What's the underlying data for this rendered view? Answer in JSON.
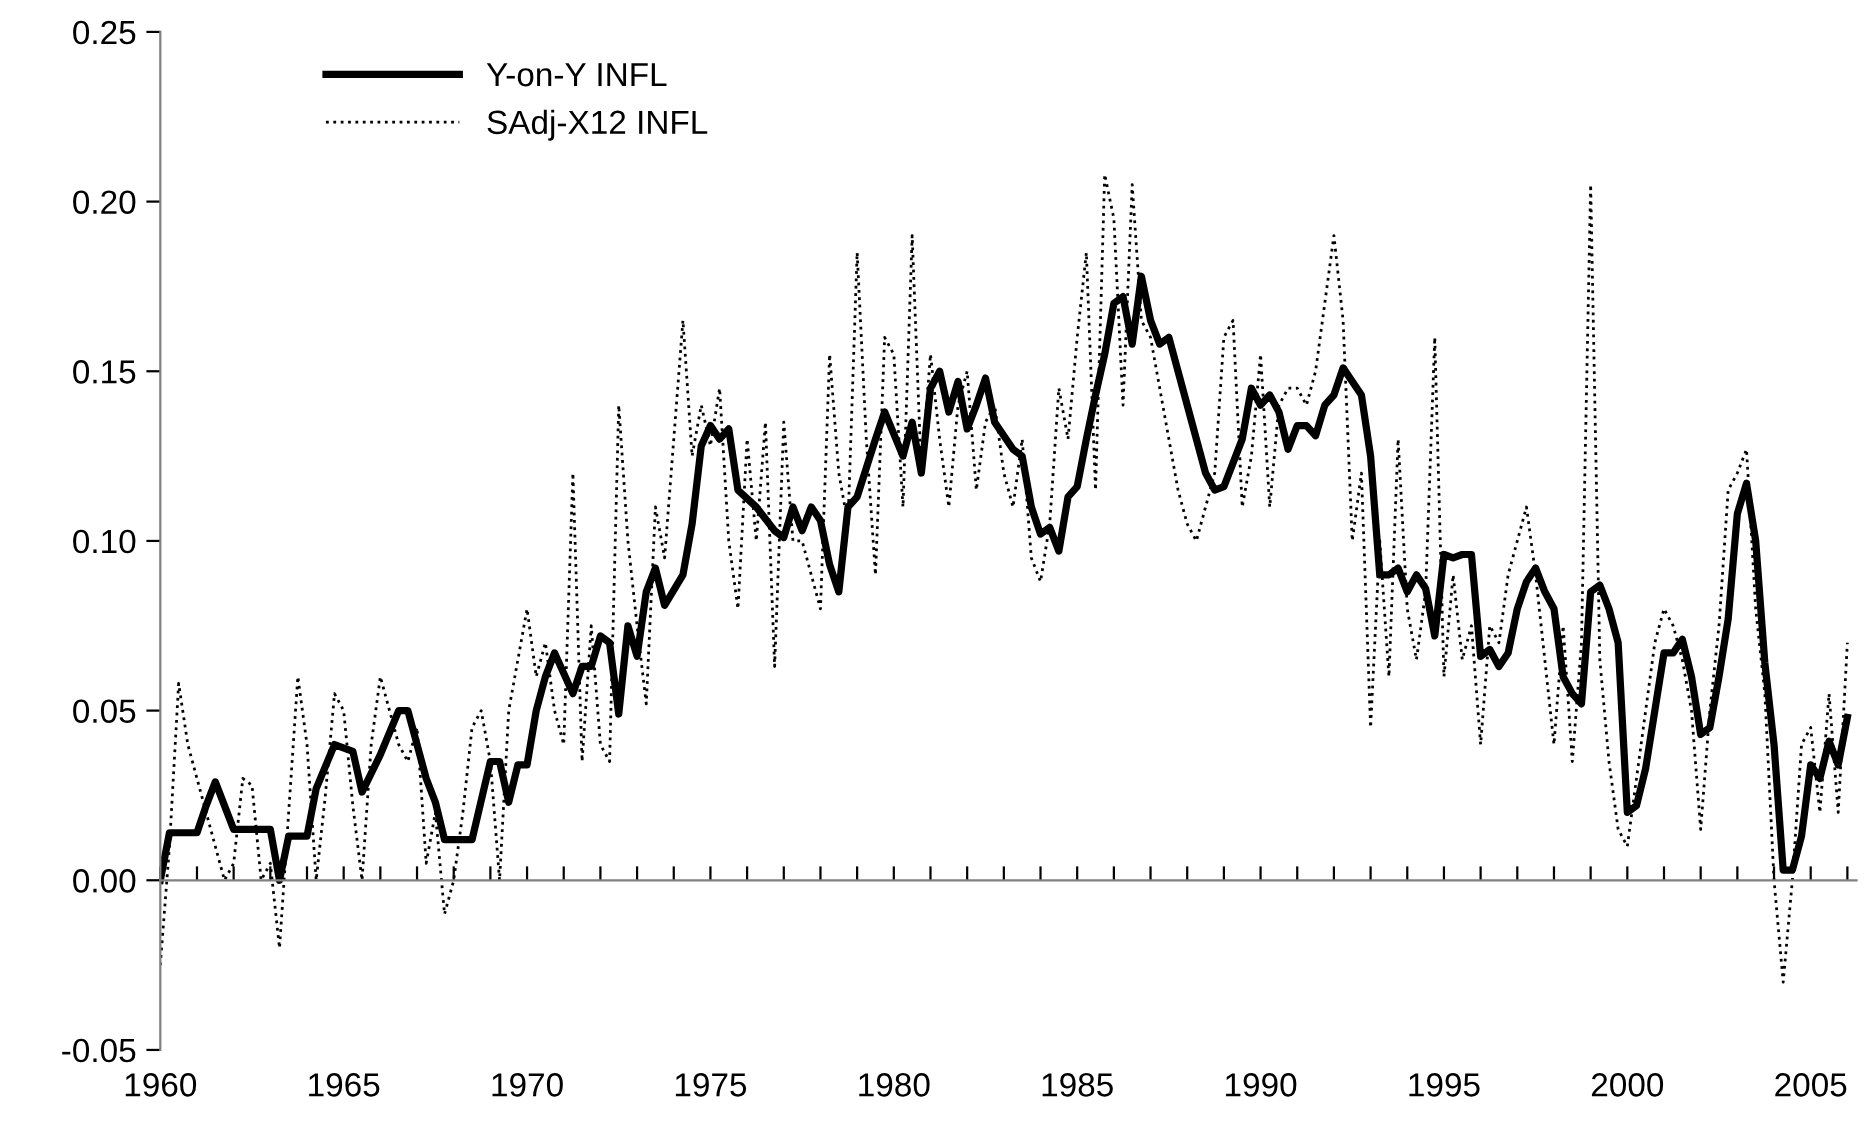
{
  "chart_data": {
    "type": "line",
    "legend": "top left",
    "xlim": [
      1960,
      2006.25
    ],
    "xticks": [
      1960,
      {
        "value": 1961,
        "label": null
      },
      {
        "value": 1962,
        "label": null
      },
      {
        "value": 1963,
        "label": null
      },
      {
        "value": 1964,
        "label": null
      },
      1965,
      {
        "value": 1966,
        "label": null
      },
      {
        "value": 1967,
        "label": null
      },
      {
        "value": 1968,
        "label": null
      },
      {
        "value": 1969,
        "label": null
      },
      1970,
      {
        "value": 1971,
        "label": null
      },
      {
        "value": 1972,
        "label": null
      },
      {
        "value": 1973,
        "label": null
      },
      {
        "value": 1974,
        "label": null
      },
      1975,
      {
        "value": 1976,
        "label": null
      },
      {
        "value": 1977,
        "label": null
      },
      {
        "value": 1978,
        "label": null
      },
      {
        "value": 1979,
        "label": null
      },
      1980,
      {
        "value": 1981,
        "label": null
      },
      {
        "value": 1982,
        "label": null
      },
      {
        "value": 1983,
        "label": null
      },
      {
        "value": 1984,
        "label": null
      },
      1985,
      {
        "value": 1986,
        "label": null
      },
      {
        "value": 1987,
        "label": null
      },
      {
        "value": 1988,
        "label": null
      },
      {
        "value": 1989,
        "label": null
      },
      1990,
      {
        "value": 1991,
        "label": null
      },
      {
        "value": 1992,
        "label": null
      },
      {
        "value": 1993,
        "label": null
      },
      {
        "value": 1994,
        "label": null
      },
      1995,
      {
        "value": 1996,
        "label": null
      },
      {
        "value": 1997,
        "label": null
      },
      {
        "value": 1998,
        "label": null
      },
      {
        "value": 1999,
        "label": null
      },
      2000,
      {
        "value": 2001,
        "label": null
      },
      {
        "value": 2002,
        "label": null
      },
      {
        "value": 2003,
        "label": null
      },
      {
        "value": 2004,
        "label": null
      },
      2005,
      {
        "value": 2006,
        "label": null
      }
    ],
    "ylim": [
      -0.05,
      0.25
    ],
    "yticks": [
      {
        "value": -0.05,
        "label": "-0.05"
      },
      {
        "value": 0,
        "label": "0.00"
      },
      {
        "value": 0.05,
        "label": "0.05"
      },
      {
        "value": 0.1,
        "label": "0.10"
      },
      {
        "value": 0.15,
        "label": "0.15"
      },
      {
        "value": 0.2,
        "label": "0.20"
      },
      {
        "value": 0.25,
        "label": "0.25"
      }
    ],
    "series": [
      {
        "name": "Y-on-Y INFL",
        "color": "#000000",
        "line_style": "solid",
        "x": [
          1960,
          1960.25,
          1961,
          1961.25,
          1961.5,
          1962,
          1963,
          1963.25,
          1963.5,
          1964,
          1964.25,
          1964.75,
          1965.25,
          1965.5,
          1966,
          1966.5,
          1966.75,
          1967.25,
          1967.5,
          1967.75,
          1968.5,
          1969,
          1969.25,
          1969.5,
          1969.75,
          1970,
          1970.25,
          1970.5,
          1970.75,
          1971.25,
          1971.5,
          1971.75,
          1972,
          1972.25,
          1972.5,
          1972.75,
          1973,
          1973.25,
          1973.5,
          1973.75,
          1974.25,
          1974.5,
          1974.75,
          1975,
          1975.25,
          1975.5,
          1975.75,
          1976.25,
          1976.75,
          1977,
          1977.25,
          1977.5,
          1977.75,
          1978,
          1978.25,
          1978.5,
          1978.75,
          1979,
          1979.5,
          1979.75,
          1980.25,
          1980.5,
          1980.75,
          1981,
          1981.25,
          1981.5,
          1981.75,
          1982,
          1982.25,
          1982.5,
          1982.75,
          1983.25,
          1983.5,
          1983.75,
          1984,
          1984.25,
          1984.5,
          1984.75,
          1985,
          1985.25,
          1985.5,
          1985.75,
          1986,
          1986.25,
          1986.5,
          1986.75,
          1987,
          1987.25,
          1987.5,
          1988,
          1988.5,
          1988.75,
          1989,
          1989.5,
          1989.75,
          1990,
          1990.25,
          1990.5,
          1990.75,
          1991,
          1991.25,
          1991.5,
          1991.75,
          1992,
          1992.25,
          1992.75,
          1993,
          1993.25,
          1993.5,
          1993.75,
          1994,
          1994.25,
          1994.5,
          1994.75,
          1995,
          1995.25,
          1995.5,
          1995.75,
          1996,
          1996.25,
          1996.5,
          1996.75,
          1997,
          1997.25,
          1997.5,
          1997.75,
          1998,
          1998.25,
          1998.5,
          1998.75,
          1999,
          1999.25,
          1999.5,
          1999.75,
          2000,
          2000.25,
          2000.5,
          2000.75,
          2001,
          2001.25,
          2001.5,
          2001.75,
          2002,
          2002.25,
          2002.5,
          2002.75,
          2003,
          2003.25,
          2003.5,
          2003.75,
          2004,
          2004.25,
          2004.5,
          2004.75,
          2005,
          2005.25,
          2005.5,
          2005.75,
          2006
        ],
        "values": [
          0.0,
          0.014,
          0.014,
          0.022,
          0.029,
          0.015,
          0.015,
          0.0,
          0.013,
          0.013,
          0.027,
          0.04,
          0.038,
          0.026,
          0.037,
          0.05,
          0.05,
          0.03,
          0.023,
          0.012,
          0.012,
          0.035,
          0.035,
          0.023,
          0.034,
          0.034,
          0.05,
          0.06,
          0.067,
          0.055,
          0.063,
          0.063,
          0.072,
          0.07,
          0.049,
          0.075,
          0.066,
          0.085,
          0.092,
          0.081,
          0.09,
          0.105,
          0.128,
          0.134,
          0.13,
          0.133,
          0.115,
          0.11,
          0.103,
          0.101,
          0.11,
          0.103,
          0.11,
          0.106,
          0.093,
          0.085,
          0.11,
          0.113,
          0.13,
          0.138,
          0.125,
          0.135,
          0.12,
          0.145,
          0.15,
          0.138,
          0.147,
          0.133,
          0.14,
          0.148,
          0.135,
          0.127,
          0.125,
          0.11,
          0.102,
          0.104,
          0.097,
          0.113,
          0.116,
          0.13,
          0.143,
          0.155,
          0.17,
          0.172,
          0.158,
          0.178,
          0.165,
          0.158,
          0.16,
          0.14,
          0.12,
          0.115,
          0.116,
          0.13,
          0.145,
          0.14,
          0.143,
          0.138,
          0.127,
          0.134,
          0.134,
          0.131,
          0.14,
          0.143,
          0.151,
          0.143,
          0.125,
          0.09,
          0.09,
          0.092,
          0.085,
          0.09,
          0.086,
          0.072,
          0.096,
          0.095,
          0.096,
          0.096,
          0.066,
          0.068,
          0.063,
          0.067,
          0.08,
          0.088,
          0.092,
          0.085,
          0.08,
          0.06,
          0.055,
          0.052,
          0.085,
          0.087,
          0.08,
          0.07,
          0.02,
          0.022,
          0.033,
          0.05,
          0.067,
          0.067,
          0.071,
          0.06,
          0.043,
          0.045,
          0.06,
          0.077,
          0.108,
          0.117,
          0.1,
          0.064,
          0.04,
          0.003,
          0.003,
          0.013,
          0.034,
          0.03,
          0.041,
          0.034,
          0.048
        ]
      },
      {
        "name": "SAdj-X12 INFL",
        "color": "#000000",
        "line_style": "dotted",
        "x": [
          1960,
          1960.25,
          1960.5,
          1960.75,
          1961.25,
          1961.5,
          1961.75,
          1962,
          1962.25,
          1962.5,
          1962.75,
          1963,
          1963.25,
          1963.5,
          1963.75,
          1964,
          1964.25,
          1964.5,
          1964.75,
          1965,
          1965.25,
          1965.5,
          1965.75,
          1966,
          1966.25,
          1966.5,
          1966.75,
          1967,
          1967.25,
          1967.5,
          1967.75,
          1968,
          1968.25,
          1968.5,
          1968.75,
          1969,
          1969.25,
          1969.5,
          1969.75,
          1970,
          1970.25,
          1970.5,
          1970.75,
          1971,
          1971.25,
          1971.5,
          1971.75,
          1972,
          1972.25,
          1972.5,
          1972.75,
          1973,
          1973.25,
          1973.5,
          1973.75,
          1974,
          1974.25,
          1974.5,
          1974.75,
          1975,
          1975.25,
          1975.5,
          1975.75,
          1976,
          1976.25,
          1976.5,
          1976.75,
          1977,
          1977.25,
          1977.5,
          1977.75,
          1978,
          1978.25,
          1978.5,
          1978.75,
          1979,
          1979.25,
          1979.5,
          1979.75,
          1980,
          1980.25,
          1980.5,
          1980.75,
          1981,
          1981.25,
          1981.5,
          1981.75,
          1982,
          1982.25,
          1982.5,
          1982.75,
          1983,
          1983.25,
          1983.5,
          1983.75,
          1984,
          1984.25,
          1984.5,
          1984.75,
          1985,
          1985.25,
          1985.5,
          1985.75,
          1986,
          1986.25,
          1986.5,
          1986.75,
          1987,
          1987.25,
          1987.5,
          1987.75,
          1988,
          1988.25,
          1988.5,
          1988.75,
          1989,
          1989.25,
          1989.5,
          1989.75,
          1990,
          1990.25,
          1990.5,
          1990.75,
          1991,
          1991.25,
          1991.5,
          1991.75,
          1992,
          1992.25,
          1992.5,
          1992.75,
          1993,
          1993.25,
          1993.5,
          1993.75,
          1994,
          1994.25,
          1994.5,
          1994.75,
          1995,
          1995.25,
          1995.5,
          1995.75,
          1996,
          1996.25,
          1996.5,
          1996.75,
          1997,
          1997.25,
          1997.5,
          1997.75,
          1998,
          1998.25,
          1998.5,
          1998.75,
          1999,
          1999.25,
          1999.5,
          1999.75,
          2000,
          2000.25,
          2000.5,
          2000.75,
          2001,
          2001.25,
          2001.5,
          2001.75,
          2002,
          2002.25,
          2002.5,
          2002.75,
          2003,
          2003.25,
          2003.5,
          2003.75,
          2004,
          2004.25,
          2004.5,
          2004.75,
          2005,
          2005.25,
          2005.5,
          2005.75,
          2006
        ],
        "values": [
          -0.025,
          0.01,
          0.058,
          0.04,
          0.02,
          0.01,
          0.0,
          0.005,
          0.03,
          0.028,
          0.0,
          0.005,
          -0.02,
          0.02,
          0.06,
          0.04,
          0.0,
          0.025,
          0.055,
          0.05,
          0.022,
          0.0,
          0.04,
          0.06,
          0.05,
          0.04,
          0.035,
          0.045,
          0.005,
          0.02,
          -0.01,
          0.0,
          0.02,
          0.045,
          0.05,
          0.035,
          0.0,
          0.05,
          0.065,
          0.08,
          0.06,
          0.07,
          0.05,
          0.04,
          0.12,
          0.035,
          0.075,
          0.04,
          0.035,
          0.14,
          0.1,
          0.075,
          0.052,
          0.11,
          0.095,
          0.13,
          0.165,
          0.125,
          0.14,
          0.128,
          0.145,
          0.1,
          0.08,
          0.13,
          0.1,
          0.135,
          0.063,
          0.135,
          0.1,
          0.1,
          0.09,
          0.08,
          0.155,
          0.12,
          0.105,
          0.185,
          0.13,
          0.09,
          0.16,
          0.155,
          0.11,
          0.19,
          0.12,
          0.155,
          0.13,
          0.11,
          0.14,
          0.15,
          0.115,
          0.135,
          0.14,
          0.12,
          0.11,
          0.13,
          0.095,
          0.088,
          0.105,
          0.145,
          0.13,
          0.16,
          0.185,
          0.115,
          0.208,
          0.195,
          0.14,
          0.205,
          0.165,
          0.16,
          0.145,
          0.13,
          0.115,
          0.105,
          0.1,
          0.11,
          0.12,
          0.16,
          0.165,
          0.11,
          0.125,
          0.155,
          0.11,
          0.14,
          0.145,
          0.145,
          0.14,
          0.15,
          0.17,
          0.19,
          0.165,
          0.1,
          0.12,
          0.045,
          0.1,
          0.06,
          0.13,
          0.08,
          0.065,
          0.085,
          0.16,
          0.06,
          0.09,
          0.065,
          0.075,
          0.04,
          0.075,
          0.07,
          0.09,
          0.1,
          0.11,
          0.09,
          0.065,
          0.04,
          0.075,
          0.035,
          0.07,
          0.205,
          0.065,
          0.035,
          0.015,
          0.01,
          0.03,
          0.05,
          0.07,
          0.08,
          0.075,
          0.065,
          0.05,
          0.015,
          0.05,
          0.075,
          0.115,
          0.12,
          0.127,
          0.08,
          0.055,
          0.0,
          -0.03,
          0.0,
          0.04,
          0.045,
          0.02,
          0.055,
          0.02,
          0.07
        ]
      }
    ]
  }
}
